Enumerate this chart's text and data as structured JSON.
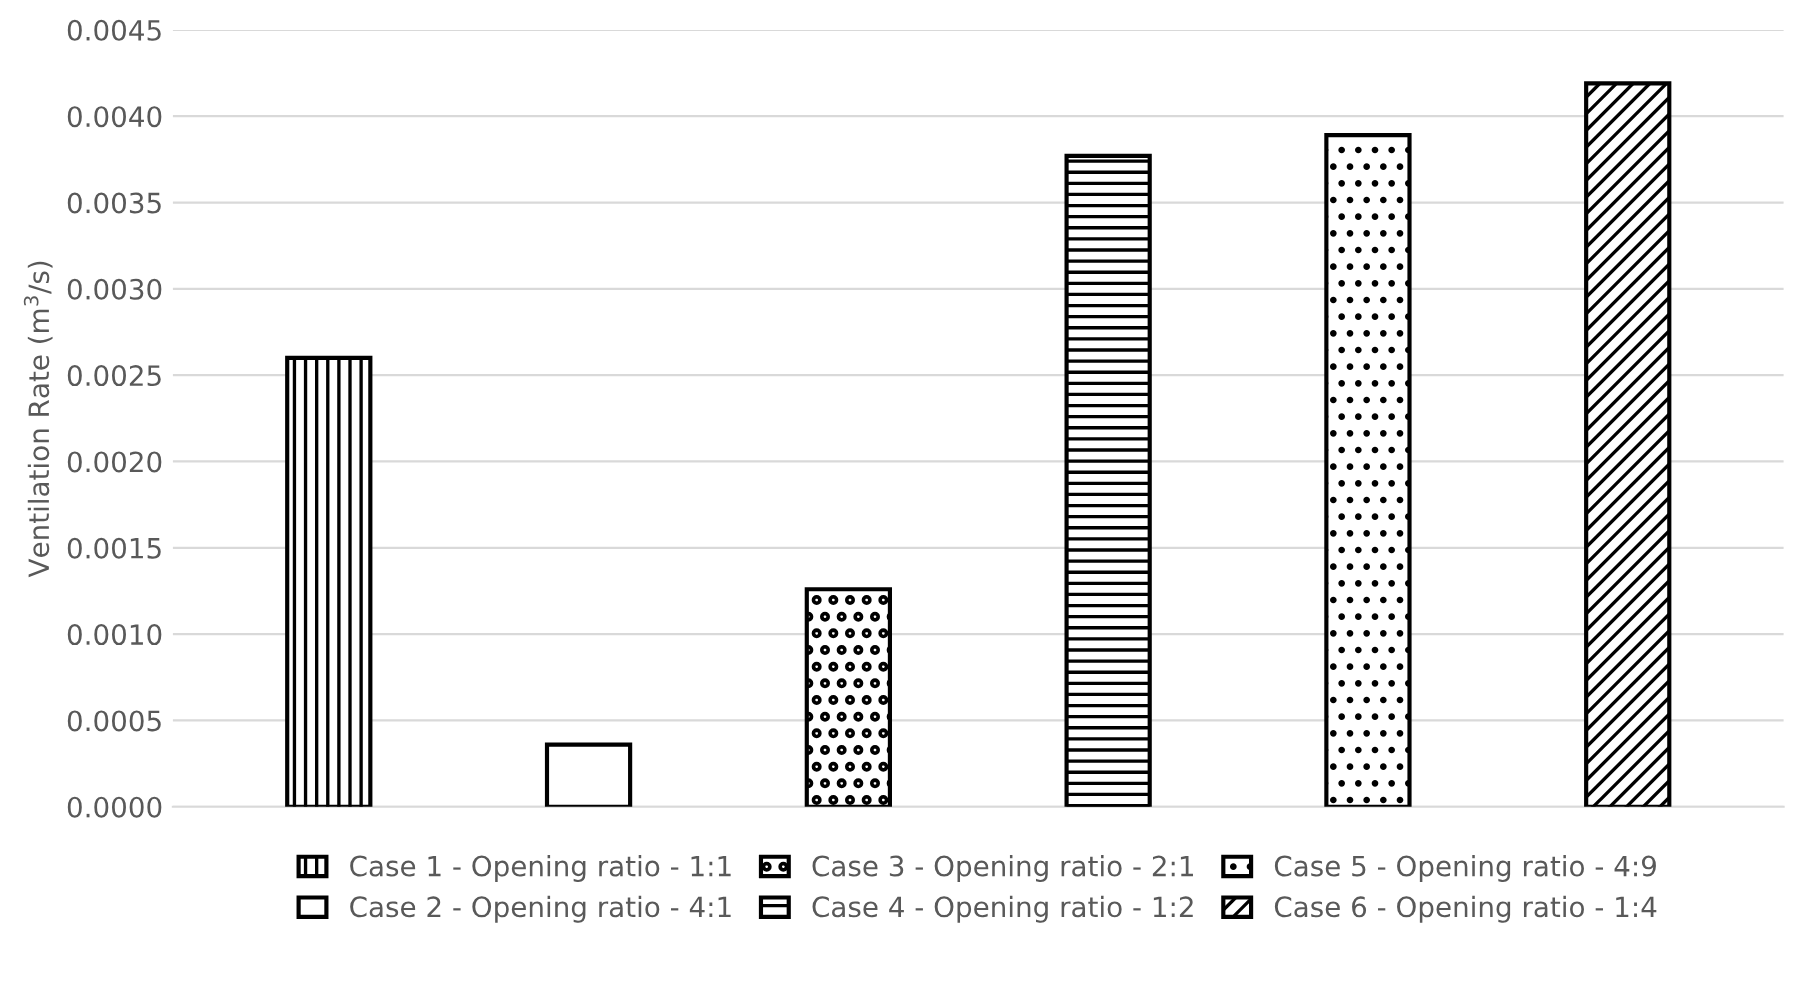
{
  "chart_data": {
    "type": "bar",
    "ylabel": "Ventilation Rate (m$^{3}$/s)",
    "categories": [
      null,
      null,
      null,
      null,
      null,
      null
    ],
    "series": [
      {
        "name": "Case 1 - Opening ratio - 1:1",
        "color": "#000000",
        "values": [
          0.0026,
          null,
          null,
          null,
          null,
          null
        ]
      },
      {
        "name": "Case 2 - Opening ratio - 4:1",
        "color": "#000000",
        "values": [
          null,
          0.00036,
          null,
          null,
          null,
          null
        ]
      },
      {
        "name": "Case 3 - Opening ratio - 2:1",
        "color": "#000000",
        "values": [
          null,
          null,
          0.00126,
          null,
          null,
          null
        ]
      },
      {
        "name": "Case 4 - Opening ratio - 1:2",
        "color": "#000000",
        "values": [
          null,
          null,
          null,
          0.00377,
          null,
          null
        ]
      },
      {
        "name": "Case 5 - Opening ratio - 4:9",
        "color": "#000000",
        "values": [
          null,
          null,
          null,
          null,
          0.00389,
          null
        ]
      },
      {
        "name": "Case 6 - Opening ratio - 1:4",
        "color": "#000000",
        "values": [
          null,
          null,
          null,
          null,
          null,
          0.00419
        ]
      }
    ],
    "ylim": [
      0,
      0.0045
    ],
    "yticks": [
      {
        "value": 0,
        "label": "0.0000"
      },
      {
        "value": 0.0005,
        "label": "0.0005"
      },
      {
        "value": 0.001,
        "label": "0.0010"
      },
      {
        "value": 0.0015,
        "label": "0.0015"
      },
      {
        "value": 0.002,
        "label": "0.0020"
      },
      {
        "value": 0.0025,
        "label": "0.0025"
      },
      {
        "value": 0.003,
        "label": "0.0030"
      },
      {
        "value": 0.0035,
        "label": "0.0035"
      },
      {
        "value": 0.004,
        "label": "0.0040"
      },
      {
        "value": 0.0045,
        "label": "0.0045"
      }
    ],
    "grid": "y",
    "legend": "bottom",
    "tick_labels": "y"
  }
}
